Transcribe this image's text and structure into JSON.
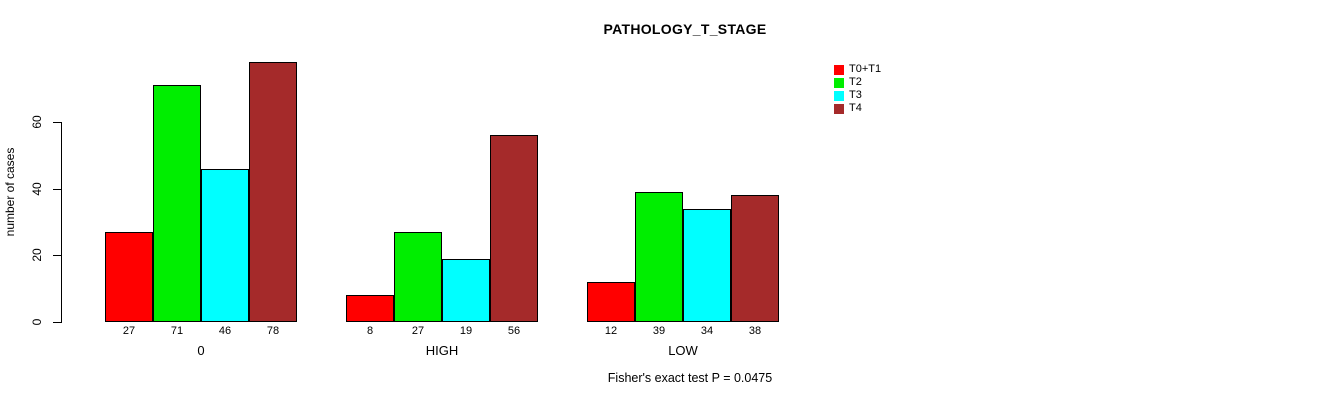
{
  "title": "PATHOLOGY_T_STAGE",
  "y_axis": {
    "label": "number of cases",
    "ticks": [
      0,
      20,
      40,
      60
    ]
  },
  "footer": "Fisher's exact test P = 0.0475",
  "legend": {
    "items": [
      {
        "label": "T0+T1",
        "color": "#FF0000"
      },
      {
        "label": "T2",
        "color": "#00EE00"
      },
      {
        "label": "T3",
        "color": "#00FFFF"
      },
      {
        "label": "T4",
        "color": "#A52A2A"
      }
    ]
  },
  "chart_data": {
    "type": "bar",
    "title": "PATHOLOGY_T_STAGE",
    "xlabel": "",
    "ylabel": "number of cases",
    "categories": [
      "0",
      "HIGH",
      "LOW"
    ],
    "series": [
      {
        "name": "T0+T1",
        "color": "#FF0000",
        "values": [
          27,
          8,
          12
        ]
      },
      {
        "name": "T2",
        "color": "#00EE00",
        "values": [
          71,
          27,
          39
        ]
      },
      {
        "name": "T3",
        "color": "#00FFFF",
        "values": [
          46,
          19,
          34
        ]
      },
      {
        "name": "T4",
        "color": "#A52A2A",
        "values": [
          78,
          56,
          38
        ]
      }
    ],
    "bar_value_labels": [
      [
        27,
        71,
        46,
        78
      ],
      [
        8,
        27,
        19,
        56
      ],
      [
        12,
        39,
        34,
        38
      ]
    ],
    "ylim": [
      0,
      80
    ],
    "yticks": [
      0,
      20,
      40,
      60
    ],
    "grid": false,
    "legend_position": "top-right",
    "legend_entries": [
      "T0+T1",
      "T2",
      "T3",
      "T4"
    ],
    "annotation": "Fisher's exact test P = 0.0475"
  }
}
